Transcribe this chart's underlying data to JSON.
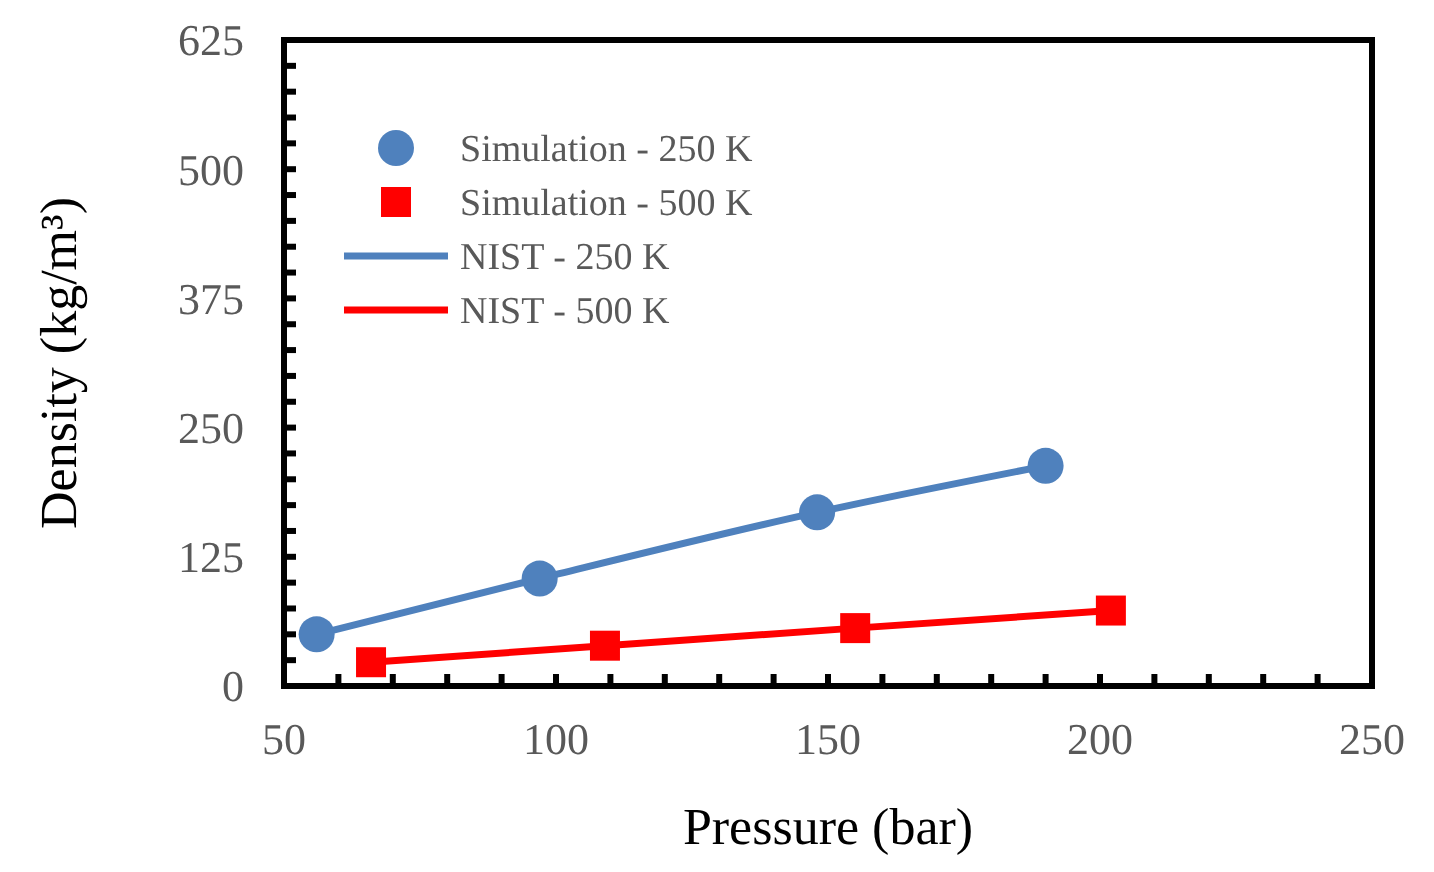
{
  "chart_data": {
    "type": "scatter",
    "xlabel": "Pressure (bar)",
    "ylabel": "Density (kg/m³)",
    "xlim": [
      50,
      250
    ],
    "xticks": [
      50,
      {
        "value": 60,
        "label": null
      },
      {
        "value": 70,
        "label": null
      },
      {
        "value": 80,
        "label": null
      },
      {
        "value": 90,
        "label": null
      },
      100,
      {
        "value": 110,
        "label": null
      },
      {
        "value": 120,
        "label": null
      },
      {
        "value": 130,
        "label": null
      },
      {
        "value": 140,
        "label": null
      },
      150,
      {
        "value": 160,
        "label": null
      },
      {
        "value": 170,
        "label": null
      },
      {
        "value": 180,
        "label": null
      },
      {
        "value": 190,
        "label": null
      },
      200,
      {
        "value": 210,
        "label": null
      },
      {
        "value": 220,
        "label": null
      },
      {
        "value": 230,
        "label": null
      },
      {
        "value": 240,
        "label": null
      },
      250
    ],
    "ylim": [
      0,
      625
    ],
    "yticks": [
      0,
      {
        "value": 25,
        "label": null
      },
      {
        "value": 50,
        "label": null
      },
      {
        "value": 75,
        "label": null
      },
      {
        "value": 100,
        "label": null
      },
      125,
      {
        "value": 150,
        "label": null
      },
      {
        "value": 175,
        "label": null
      },
      {
        "value": 200,
        "label": null
      },
      {
        "value": 225,
        "label": null
      },
      250,
      {
        "value": 275,
        "label": null
      },
      {
        "value": 300,
        "label": null
      },
      {
        "value": 325,
        "label": null
      },
      {
        "value": 350,
        "label": null
      },
      375,
      {
        "value": 400,
        "label": null
      },
      {
        "value": 425,
        "label": null
      },
      {
        "value": 450,
        "label": null
      },
      {
        "value": 475,
        "label": null
      },
      500,
      {
        "value": 525,
        "label": null
      },
      {
        "value": 550,
        "label": null
      },
      {
        "value": 575,
        "label": null
      },
      {
        "value": 600,
        "label": null
      },
      625
    ],
    "grid": false,
    "legend": "top left",
    "series": [
      {
        "name": "Simulation - 250 K",
        "marker": "circle",
        "color": "#4f81bd",
        "x": [
          56,
          97,
          148,
          190
        ],
        "values": [
          50,
          104,
          168,
          213
        ]
      },
      {
        "name": "Simulation - 500 K",
        "marker": "square",
        "color": "#ff0000",
        "x": [
          66,
          109,
          155,
          202
        ],
        "values": [
          23,
          39,
          56,
          73
        ]
      },
      {
        "name": "NIST - 250 K",
        "type": "line",
        "marker": "none",
        "color": "#4f81bd",
        "x": [
          56,
          97,
          148,
          190
        ],
        "values": [
          50,
          104,
          168,
          213
        ]
      },
      {
        "name": "NIST - 500 K",
        "type": "line",
        "marker": "none",
        "color": "#ff0000",
        "x": [
          66,
          109,
          155,
          202
        ],
        "values": [
          23,
          39,
          56,
          73
        ]
      }
    ]
  }
}
